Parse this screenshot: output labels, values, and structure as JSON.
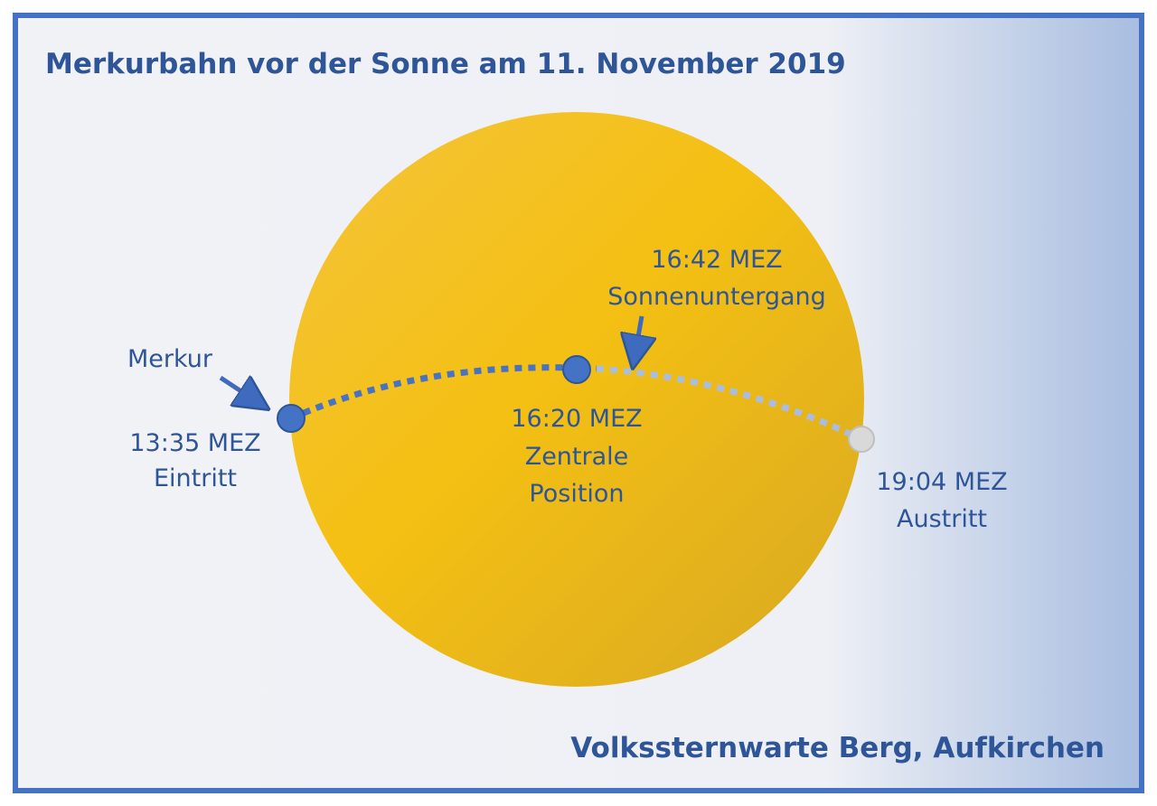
{
  "header": {
    "title": "Merkurbahn vor der Sonne am 11. November 2019"
  },
  "labels": {
    "merkur": "Merkur",
    "entry": {
      "time": "13:35 MEZ",
      "label": "Eintritt"
    },
    "central": {
      "time": "16:20 MEZ",
      "line1": "Zentrale",
      "line2": "Position"
    },
    "sunset": {
      "time": "16:42 MEZ",
      "label": "Sonnenuntergang"
    },
    "exit": {
      "time": "19:04 MEZ",
      "label": "Austritt"
    }
  },
  "footer": {
    "text": "Volkssternwarte Berg, Aufkirchen"
  }
}
